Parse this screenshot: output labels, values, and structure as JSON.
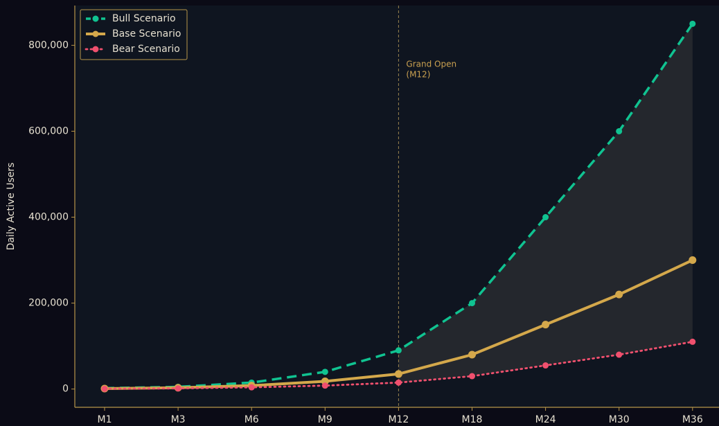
{
  "chart_data": {
    "type": "line",
    "y_label": "Daily Active Users",
    "categories": [
      "M1",
      "M3",
      "M6",
      "M9",
      "M12",
      "M18",
      "M24",
      "M30",
      "M36"
    ],
    "series": [
      {
        "name": "Bull Scenario",
        "color": "#10c391",
        "dash": "dashed",
        "values": [
          2000,
          5000,
          15000,
          40000,
          90000,
          200000,
          400000,
          600000,
          850000
        ]
      },
      {
        "name": "Base Scenario",
        "color": "#d4a84b",
        "dash": "solid",
        "values": [
          1000,
          3000,
          8000,
          18000,
          35000,
          80000,
          150000,
          220000,
          300000
        ]
      },
      {
        "name": "Bear Scenario",
        "color": "#f0506e",
        "dash": "dotted",
        "values": [
          500,
          1500,
          4000,
          8000,
          15000,
          30000,
          55000,
          80000,
          110000
        ]
      }
    ],
    "ylim": [
      -42500,
      892500
    ],
    "yticks": [
      0,
      {
        "value": 200000,
        "label": "200,000"
      },
      {
        "value": 400000,
        "label": "400,000"
      },
      {
        "value": 600000,
        "label": "600,000"
      },
      {
        "value": 800000,
        "label": "800,000"
      }
    ],
    "vline": {
      "category": "M12",
      "label": [
        "Grand Open",
        "(M12)"
      ]
    },
    "legend": "upper left",
    "grid": false
  }
}
